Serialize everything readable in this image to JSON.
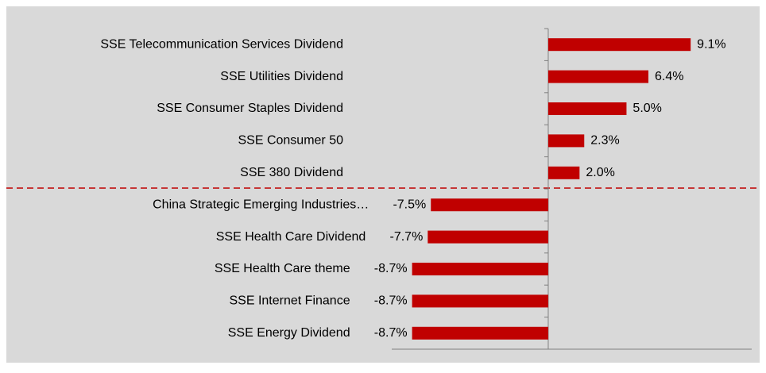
{
  "chart_data": {
    "type": "bar",
    "orientation": "horizontal",
    "categories": [
      "SSE Telecommunication Services Dividend",
      "SSE Utilities Dividend",
      "SSE Consumer Staples Dividend",
      "SSE Consumer 50",
      "SSE 380 Dividend",
      "China Strategic Emerging Industries…",
      "SSE Health Care Dividend",
      "SSE Health Care theme",
      "SSE Internet Finance",
      "SSE Energy Dividend"
    ],
    "values": [
      9.1,
      6.4,
      5.0,
      2.3,
      2.0,
      -7.5,
      -7.7,
      -8.7,
      -8.7,
      -8.7
    ],
    "value_labels": [
      "9.1%",
      "6.4%",
      "5.0%",
      "2.3%",
      "2.0%",
      "-7.5%",
      "-7.7%",
      "-8.7%",
      "-8.7%",
      "-8.7%"
    ],
    "color": "#c00000",
    "xlim": [
      -10,
      13
    ]
  }
}
